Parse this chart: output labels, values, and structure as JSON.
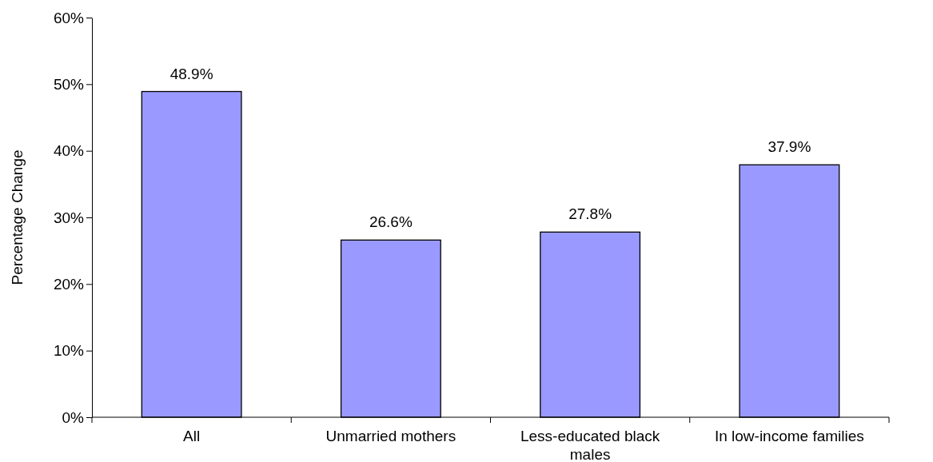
{
  "chart_data": {
    "type": "bar",
    "ylabel": "Percentage Change",
    "categories": [
      "All",
      "Unmarried mothers",
      "Less-educated black males",
      "In low-income families"
    ],
    "values": [
      48.9,
      26.6,
      27.8,
      37.9
    ],
    "value_labels": [
      "48.9%",
      "26.6%",
      "27.8%",
      "37.9%"
    ],
    "color": "#9999ff",
    "ylim": [
      0,
      60
    ],
    "yticks": [
      {
        "value": 0,
        "label": "0%"
      },
      {
        "value": 10,
        "label": "10%"
      },
      {
        "value": 20,
        "label": "20%"
      },
      {
        "value": 30,
        "label": "30%"
      },
      {
        "value": 40,
        "label": "40%"
      },
      {
        "value": 50,
        "label": "50%"
      },
      {
        "value": 60,
        "label": "60%"
      }
    ],
    "grid": false
  }
}
